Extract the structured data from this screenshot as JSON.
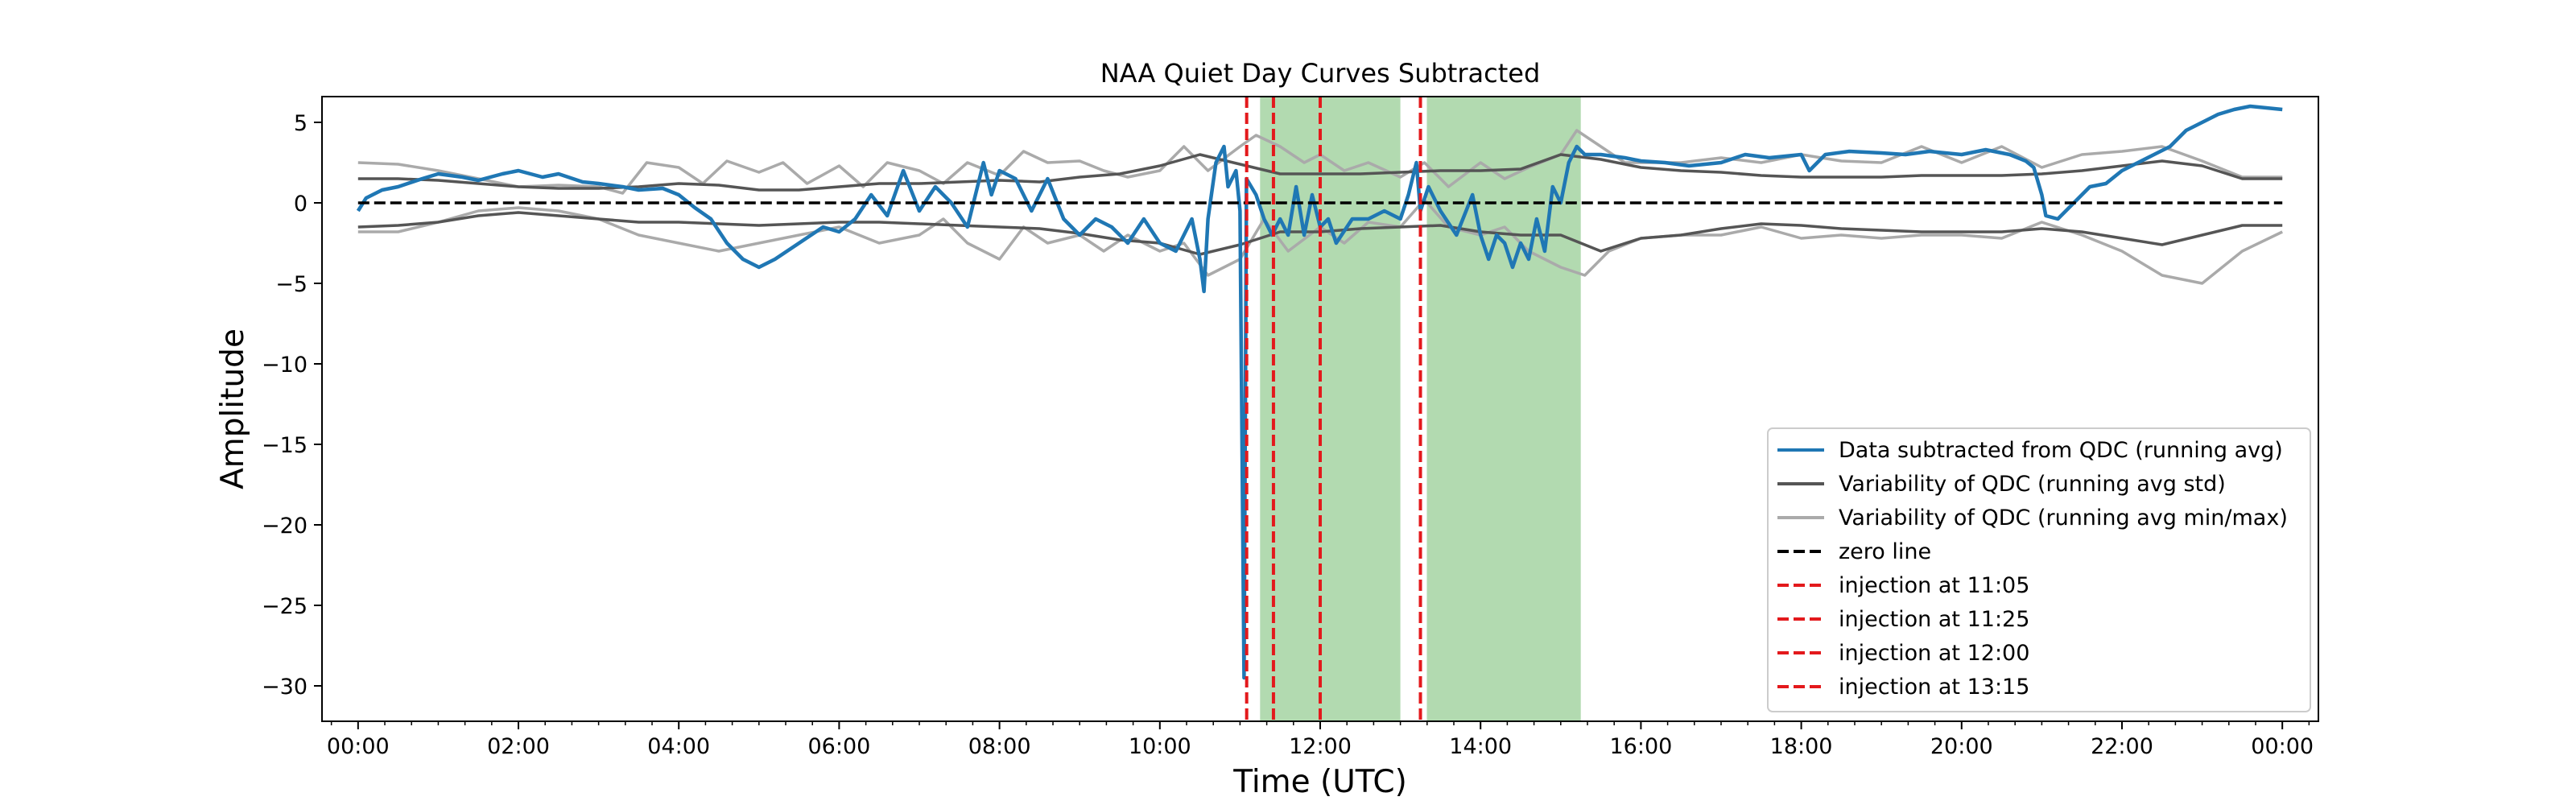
{
  "chart_data": {
    "type": "line",
    "title": "NAA Quiet Day Curves Subtracted",
    "xlabel": "Time (UTC)",
    "ylabel": "Amplitude",
    "xlim": [
      -0.45,
      24.45
    ],
    "ylim": [
      -32.2,
      6.6
    ],
    "x_ticks": [
      0,
      2,
      4,
      6,
      8,
      10,
      12,
      14,
      16,
      18,
      20,
      22,
      24
    ],
    "x_tick_labels": [
      "00:00",
      "02:00",
      "04:00",
      "06:00",
      "08:00",
      "10:00",
      "12:00",
      "14:00",
      "16:00",
      "18:00",
      "20:00",
      "22:00",
      "00:00"
    ],
    "y_ticks": [
      5,
      0,
      -5,
      -10,
      -15,
      -20,
      -25,
      -30
    ],
    "y_tick_labels": [
      "5",
      "0",
      "−5",
      "−10",
      "−15",
      "−20",
      "−25",
      "−30"
    ],
    "legend_position": "lower right",
    "legend": [
      {
        "label": "Data subtracted from QDC (running avg)",
        "color": "#1f77b4",
        "style": "solid"
      },
      {
        "label": "Variability of QDC (running avg std)",
        "color": "#555555",
        "style": "solid"
      },
      {
        "label": "Variability of QDC (running avg min/max)",
        "color": "#aaaaaa",
        "style": "solid"
      },
      {
        "label": "zero line",
        "color": "#000000",
        "style": "dashed"
      },
      {
        "label": "injection at 11:05",
        "color": "#e3191c",
        "style": "dashed"
      },
      {
        "label": "injection at 11:25",
        "color": "#e3191c",
        "style": "dashed"
      },
      {
        "label": "injection at 12:00",
        "color": "#e3191c",
        "style": "dashed"
      },
      {
        "label": "injection at 13:15",
        "color": "#e3191c",
        "style": "dashed"
      }
    ],
    "injections": [
      11.083,
      11.417,
      12.0,
      13.25
    ],
    "shaded_regions": [
      {
        "start": 11.25,
        "end": 13.0,
        "color": "#7fc17b"
      },
      {
        "start": 13.33,
        "end": 15.25,
        "color": "#7fc17b"
      }
    ],
    "series": [
      {
        "name": "Data subtracted from QDC (running avg)",
        "color": "#1f77b4",
        "x": [
          0,
          0.1,
          0.3,
          0.5,
          0.8,
          1.0,
          1.3,
          1.5,
          1.8,
          2.0,
          2.3,
          2.5,
          2.8,
          3.0,
          3.3,
          3.5,
          3.8,
          4.0,
          4.2,
          4.4,
          4.6,
          4.8,
          5.0,
          5.2,
          5.5,
          5.8,
          6.0,
          6.2,
          6.4,
          6.6,
          6.8,
          7.0,
          7.2,
          7.4,
          7.6,
          7.8,
          7.9,
          8.0,
          8.2,
          8.4,
          8.6,
          8.8,
          9.0,
          9.2,
          9.4,
          9.6,
          9.8,
          10.0,
          10.2,
          10.4,
          10.5,
          10.55,
          10.6,
          10.7,
          10.8,
          10.85,
          10.95,
          11.0,
          11.05,
          11.08,
          11.2,
          11.3,
          11.4,
          11.5,
          11.6,
          11.7,
          11.8,
          11.9,
          12.0,
          12.1,
          12.2,
          12.4,
          12.6,
          12.8,
          13.0,
          13.1,
          13.2,
          13.25,
          13.35,
          13.5,
          13.7,
          13.9,
          14.0,
          14.1,
          14.2,
          14.3,
          14.4,
          14.5,
          14.6,
          14.7,
          14.8,
          14.9,
          15.0,
          15.1,
          15.2,
          15.3,
          15.5,
          15.8,
          16.0,
          16.3,
          16.6,
          17.0,
          17.3,
          17.6,
          18.0,
          18.1,
          18.3,
          18.6,
          19.0,
          19.3,
          19.6,
          20.0,
          20.3,
          20.6,
          20.8,
          20.9,
          21.0,
          21.05,
          21.2,
          21.4,
          21.6,
          21.8,
          22.0,
          22.2,
          22.4,
          22.6,
          22.8,
          23.0,
          23.2,
          23.4,
          23.6,
          23.8,
          24.0
        ],
        "y": [
          -0.5,
          0.3,
          0.8,
          1.0,
          1.5,
          1.8,
          1.6,
          1.4,
          1.8,
          2.0,
          1.6,
          1.8,
          1.3,
          1.2,
          1.0,
          0.8,
          0.9,
          0.5,
          -0.3,
          -1.0,
          -2.5,
          -3.5,
          -4.0,
          -3.5,
          -2.5,
          -1.5,
          -1.8,
          -1.0,
          0.5,
          -0.8,
          2.0,
          -0.5,
          1.0,
          0.0,
          -1.5,
          2.5,
          0.5,
          2.0,
          1.5,
          -0.5,
          1.5,
          -1.0,
          -2.0,
          -1.0,
          -1.5,
          -2.5,
          -1.0,
          -2.5,
          -3.0,
          -1.0,
          -3.5,
          -5.5,
          -1.0,
          2.5,
          3.5,
          1.0,
          2.0,
          -0.5,
          -29.5,
          1.5,
          0.5,
          -1.0,
          -2.0,
          -1.0,
          -2.0,
          1.0,
          -2.0,
          0.5,
          -1.5,
          -1.0,
          -2.5,
          -1.0,
          -1.0,
          -0.5,
          -1.0,
          0.5,
          2.5,
          -0.5,
          1.0,
          -0.5,
          -2.0,
          0.5,
          -2.0,
          -3.5,
          -2.0,
          -2.5,
          -4.0,
          -2.5,
          -3.5,
          -1.0,
          -3.0,
          1.0,
          0.0,
          2.5,
          3.5,
          3.0,
          3.0,
          2.8,
          2.6,
          2.5,
          2.3,
          2.5,
          3.0,
          2.8,
          3.0,
          2.0,
          3.0,
          3.2,
          3.1,
          3.0,
          3.2,
          3.0,
          3.3,
          3.0,
          2.6,
          2.2,
          0.5,
          -0.8,
          -1.0,
          0.0,
          1.0,
          1.2,
          2.0,
          2.5,
          3.0,
          3.5,
          4.5,
          5.0,
          5.5,
          5.8,
          6.0,
          5.9,
          5.8
        ]
      },
      {
        "name": "Variability of QDC (running avg std)",
        "color": "#555555",
        "x": [
          0,
          0.5,
          1.0,
          1.5,
          2.0,
          2.5,
          3.0,
          3.5,
          4.0,
          4.5,
          5.0,
          5.5,
          6.0,
          6.5,
          7.0,
          7.5,
          8.0,
          8.5,
          9.0,
          9.5,
          10.0,
          10.5,
          11.0,
          11.5,
          12.0,
          12.5,
          13.0,
          13.5,
          14.0,
          14.5,
          15.0,
          15.5,
          16.0,
          16.5,
          17.0,
          17.5,
          18.0,
          18.5,
          19.0,
          19.5,
          20.0,
          20.5,
          21.0,
          21.5,
          22.0,
          22.5,
          23.0,
          23.5,
          24.0
        ],
        "y": [
          1.5,
          1.5,
          1.4,
          1.2,
          1.0,
          0.9,
          0.9,
          1.0,
          1.2,
          1.1,
          0.8,
          0.8,
          1.0,
          1.2,
          1.2,
          1.3,
          1.4,
          1.3,
          1.6,
          1.8,
          2.3,
          3.0,
          2.4,
          1.8,
          1.8,
          1.8,
          1.9,
          2.0,
          2.0,
          2.1,
          3.0,
          2.7,
          2.2,
          2.0,
          1.9,
          1.7,
          1.6,
          1.6,
          1.6,
          1.7,
          1.7,
          1.7,
          1.8,
          2.0,
          2.3,
          2.6,
          2.3,
          1.5,
          1.5
        ]
      },
      {
        "name": "Variability of QDC (running avg std) lower",
        "color": "#555555",
        "x": [
          0,
          0.5,
          1.0,
          1.5,
          2.0,
          2.5,
          3.0,
          3.5,
          4.0,
          4.5,
          5.0,
          5.5,
          6.0,
          6.5,
          7.0,
          7.5,
          8.0,
          8.5,
          9.0,
          9.5,
          10.0,
          10.5,
          11.0,
          11.5,
          12.0,
          12.5,
          13.0,
          13.5,
          14.0,
          14.5,
          15.0,
          15.5,
          16.0,
          16.5,
          17.0,
          17.5,
          18.0,
          18.5,
          19.0,
          19.5,
          20.0,
          20.5,
          21.0,
          21.5,
          22.0,
          22.5,
          23.0,
          23.5,
          24.0
        ],
        "y": [
          -1.5,
          -1.4,
          -1.2,
          -0.8,
          -0.6,
          -0.8,
          -1.0,
          -1.2,
          -1.2,
          -1.3,
          -1.4,
          -1.3,
          -1.2,
          -1.2,
          -1.3,
          -1.4,
          -1.5,
          -1.6,
          -1.9,
          -2.3,
          -2.5,
          -3.2,
          -2.6,
          -1.8,
          -1.8,
          -1.6,
          -1.5,
          -1.4,
          -1.8,
          -2.0,
          -2.0,
          -3.0,
          -2.2,
          -2.0,
          -1.6,
          -1.3,
          -1.4,
          -1.6,
          -1.7,
          -1.8,
          -1.8,
          -1.8,
          -1.6,
          -1.8,
          -2.2,
          -2.6,
          -2.0,
          -1.4,
          -1.4
        ]
      },
      {
        "name": "Variability of QDC (running avg min/max)",
        "color": "#aaaaaa",
        "x": [
          0,
          0.5,
          1.0,
          1.5,
          2.0,
          2.5,
          3.0,
          3.3,
          3.6,
          4.0,
          4.3,
          4.6,
          5.0,
          5.3,
          5.6,
          6.0,
          6.3,
          6.6,
          7.0,
          7.3,
          7.6,
          8.0,
          8.3,
          8.6,
          9.0,
          9.3,
          9.6,
          10.0,
          10.3,
          10.6,
          11.0,
          11.2,
          11.5,
          11.8,
          12.0,
          12.3,
          12.6,
          13.0,
          13.3,
          13.6,
          14.0,
          14.3,
          14.6,
          15.0,
          15.2,
          15.5,
          15.8,
          16.0,
          16.5,
          17.0,
          17.5,
          18.0,
          18.5,
          19.0,
          19.5,
          20.0,
          20.5,
          21.0,
          21.5,
          22.0,
          22.5,
          23.0,
          23.5,
          24.0
        ],
        "y": [
          2.5,
          2.4,
          2.0,
          1.5,
          1.0,
          1.1,
          1.0,
          0.6,
          2.5,
          2.2,
          1.2,
          2.6,
          1.9,
          2.5,
          1.2,
          2.3,
          1.0,
          2.5,
          2.0,
          1.2,
          2.5,
          1.7,
          3.2,
          2.5,
          2.6,
          2.0,
          1.6,
          2.0,
          3.5,
          2.0,
          3.5,
          4.2,
          3.5,
          2.5,
          3.0,
          2.0,
          2.5,
          1.6,
          2.5,
          1.0,
          2.5,
          1.5,
          2.2,
          3.0,
          4.5,
          3.5,
          2.5,
          2.5,
          2.5,
          2.8,
          2.5,
          3.0,
          2.6,
          2.5,
          3.5,
          2.5,
          3.5,
          2.2,
          3.0,
          3.2,
          3.5,
          2.6,
          1.6,
          1.6
        ]
      },
      {
        "name": "Variability of QDC (running avg min/max) lower",
        "color": "#aaaaaa",
        "x": [
          0,
          0.5,
          1.0,
          1.5,
          2.0,
          2.5,
          3.0,
          3.5,
          4.0,
          4.5,
          5.0,
          5.5,
          6.0,
          6.5,
          7.0,
          7.3,
          7.6,
          8.0,
          8.3,
          8.6,
          9.0,
          9.3,
          9.6,
          10.0,
          10.3,
          10.6,
          11.0,
          11.3,
          11.6,
          12.0,
          12.3,
          12.6,
          13.0,
          13.3,
          13.6,
          14.0,
          14.3,
          14.6,
          15.0,
          15.3,
          15.6,
          16.0,
          16.5,
          17.0,
          17.5,
          18.0,
          18.5,
          19.0,
          19.5,
          20.0,
          20.5,
          21.0,
          21.5,
          22.0,
          22.5,
          23.0,
          23.5,
          24.0
        ],
        "y": [
          -1.8,
          -1.8,
          -1.2,
          -0.5,
          -0.3,
          -0.5,
          -1.0,
          -2.0,
          -2.5,
          -3.0,
          -2.5,
          -2.0,
          -1.5,
          -2.5,
          -2.0,
          -1.0,
          -2.5,
          -3.5,
          -1.5,
          -2.5,
          -2.0,
          -3.0,
          -2.0,
          -3.0,
          -2.5,
          -4.5,
          -3.5,
          -1.0,
          -3.0,
          -1.5,
          -2.5,
          -1.2,
          -1.5,
          0.2,
          -1.5,
          -2.0,
          -1.5,
          -3.0,
          -4.0,
          -4.5,
          -3.0,
          -2.2,
          -2.0,
          -2.0,
          -1.5,
          -2.2,
          -2.0,
          -2.2,
          -2.0,
          -2.0,
          -2.2,
          -1.2,
          -2.0,
          -3.0,
          -4.5,
          -5.0,
          -3.0,
          -1.8
        ]
      },
      {
        "name": "zero line",
        "color": "#000000",
        "x": [
          0,
          24
        ],
        "y": [
          0,
          0
        ]
      }
    ]
  }
}
